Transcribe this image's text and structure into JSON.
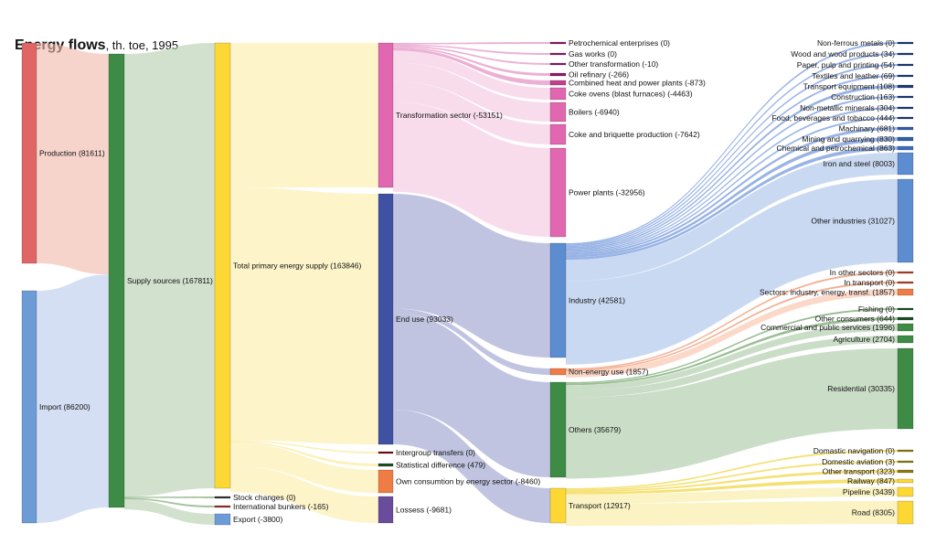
{
  "title": "Energy flows",
  "subtitle": ", th. toe, 1995",
  "chart_data": {
    "type": "sankey",
    "title": "Energy flows, th. toe, 1995",
    "nodes": [
      {
        "id": "production",
        "label": "Production (81611)",
        "value": 81611,
        "color": "#e06666"
      },
      {
        "id": "import",
        "label": "Import (86200)",
        "value": 86200,
        "color": "#6d9bd6"
      },
      {
        "id": "supply",
        "label": "Supply sources (167811)",
        "value": 167811,
        "color": "#3d8b45"
      },
      {
        "id": "tpes",
        "label": "Total primary energy supply (163846)",
        "value": 163846,
        "color": "#fdd835"
      },
      {
        "id": "stock",
        "label": "Stock changes (0)",
        "value": 0,
        "color": "#333333"
      },
      {
        "id": "bunkers",
        "label": "International bunkers (-165)",
        "value": -165,
        "color": "#9b2c2c"
      },
      {
        "id": "export",
        "label": "Export (-3800)",
        "value": -3800,
        "color": "#6d9bd6"
      },
      {
        "id": "transform",
        "label": "Transformation sector (-53151)",
        "value": -53151,
        "color": "#e067b0"
      },
      {
        "id": "enduse",
        "label": "End use (93033)",
        "value": 93033,
        "color": "#3f51a3"
      },
      {
        "id": "intergroup",
        "label": "Intergroup transfers (0)",
        "value": 0,
        "color": "#6b1010"
      },
      {
        "id": "statdiff",
        "label": "Statistical difference (479)",
        "value": 479,
        "color": "#1b4d22"
      },
      {
        "id": "owncons",
        "label": "Own consumtion by energy sector (-8460)",
        "value": -8460,
        "color": "#ef7b45"
      },
      {
        "id": "losses",
        "label": "Lossess (-9681)",
        "value": -9681,
        "color": "#6a4c9c"
      },
      {
        "id": "petrochem",
        "label": "Petrochemical enterprises (0)",
        "value": 0,
        "color": "#8e1a6a"
      },
      {
        "id": "gasworks",
        "label": "Gas works (0)",
        "value": 0,
        "color": "#8e1a6a"
      },
      {
        "id": "othertrans",
        "label": "Other transformation (-10)",
        "value": -10,
        "color": "#8e1a6a"
      },
      {
        "id": "oilref",
        "label": "Oil refinary (-266)",
        "value": -266,
        "color": "#8e1a6a"
      },
      {
        "id": "chp",
        "label": "Combined heat and power plants (-873)",
        "value": -873,
        "color": "#c2418e"
      },
      {
        "id": "cokeovens",
        "label": "Coke ovens (blast furnaces) (-4463)",
        "value": -4463,
        "color": "#e067b0"
      },
      {
        "id": "boilers",
        "label": "Boilers (-6940)",
        "value": -6940,
        "color": "#e067b0"
      },
      {
        "id": "briquette",
        "label": "Coke and briquette production (-7642)",
        "value": -7642,
        "color": "#e067b0"
      },
      {
        "id": "power",
        "label": "Power plants (-32956)",
        "value": -32956,
        "color": "#e067b0"
      },
      {
        "id": "industry",
        "label": "Industry (42581)",
        "value": 42581,
        "color": "#5b8dd0"
      },
      {
        "id": "nonenergy",
        "label": "Non-energy use (1857)",
        "value": 1857,
        "color": "#ef7b45"
      },
      {
        "id": "others",
        "label": "Others (35679)",
        "value": 35679,
        "color": "#3d8b45"
      },
      {
        "id": "transport",
        "label": "Transport (12917)",
        "value": 12917,
        "color": "#fdd835"
      },
      {
        "id": "nonferrous",
        "label": "Non-ferrous metals (0)",
        "value": 0,
        "color": "#1c3a78"
      },
      {
        "id": "wood",
        "label": "Wood and wood products (34)",
        "value": 34,
        "color": "#1c3a78"
      },
      {
        "id": "paper",
        "label": "Paper, pulp and printing (54)",
        "value": 54,
        "color": "#1c3a78"
      },
      {
        "id": "textiles",
        "label": "Textiles and leather (69)",
        "value": 69,
        "color": "#1c3a78"
      },
      {
        "id": "transeq",
        "label": "Transport equipment (108)",
        "value": 108,
        "color": "#1c3a78"
      },
      {
        "id": "construction",
        "label": "Construction (163)",
        "value": 163,
        "color": "#1c3a78"
      },
      {
        "id": "nonmetallic",
        "label": "Non-metallic minerals (304)",
        "value": 304,
        "color": "#1c3a78"
      },
      {
        "id": "food",
        "label": "Food, beverages and tobacco (444)",
        "value": 444,
        "color": "#1c3a78"
      },
      {
        "id": "machinery",
        "label": "Machinary (681)",
        "value": 681,
        "color": "#2f5fa8"
      },
      {
        "id": "mining",
        "label": "Mining and quarrying (830)",
        "value": 830,
        "color": "#2f5fa8"
      },
      {
        "id": "chemical",
        "label": "Chemical and petrochemical (863)",
        "value": 863,
        "color": "#3a6dbf"
      },
      {
        "id": "ironsteel",
        "label": "Iron and steel (8003)",
        "value": 8003,
        "color": "#5b8dd0"
      },
      {
        "id": "otherind",
        "label": "Other industries (31027)",
        "value": 31027,
        "color": "#5b8dd0"
      },
      {
        "id": "inothersec",
        "label": "In other sectors (0)",
        "value": 0,
        "color": "#b0402a"
      },
      {
        "id": "intransport",
        "label": "In transport (0)",
        "value": 0,
        "color": "#b0402a"
      },
      {
        "id": "sectorsind",
        "label": "Sectors: industry, energy, transf. (1857)",
        "value": 1857,
        "color": "#ef7b45"
      },
      {
        "id": "fishing",
        "label": "Fishing (0)",
        "value": 0,
        "color": "#1b4d22"
      },
      {
        "id": "otherconsumers",
        "label": "Other consumers (644)",
        "value": 644,
        "color": "#1b4d22"
      },
      {
        "id": "commercial",
        "label": "Commercial and public services (1996)",
        "value": 1996,
        "color": "#3d8b45"
      },
      {
        "id": "agriculture",
        "label": "Agriculture (2704)",
        "value": 2704,
        "color": "#3d8b45"
      },
      {
        "id": "residential",
        "label": "Residential (30335)",
        "value": 30335,
        "color": "#3d8b45"
      },
      {
        "id": "domnav",
        "label": "Domastic navigation (0)",
        "value": 0,
        "color": "#8a7a10"
      },
      {
        "id": "domav",
        "label": "Domestic aviation (3)",
        "value": 3,
        "color": "#8a7a10"
      },
      {
        "id": "othertransport",
        "label": "Other transport (323)",
        "value": 323,
        "color": "#8a7a10"
      },
      {
        "id": "railway",
        "label": "Railway (847)",
        "value": 847,
        "color": "#fdd835"
      },
      {
        "id": "pipeline",
        "label": "Pipeline (3439)",
        "value": 3439,
        "color": "#fdd835"
      },
      {
        "id": "road",
        "label": "Road (8305)",
        "value": 8305,
        "color": "#fdd835"
      }
    ],
    "links": [
      {
        "source": "production",
        "target": "supply",
        "value": 81611
      },
      {
        "source": "import",
        "target": "supply",
        "value": 86200
      },
      {
        "source": "supply",
        "target": "tpes",
        "value": 163846
      },
      {
        "source": "supply",
        "target": "stock",
        "value": 0
      },
      {
        "source": "supply",
        "target": "bunkers",
        "value": 165
      },
      {
        "source": "supply",
        "target": "export",
        "value": 3800
      },
      {
        "source": "tpes",
        "target": "transform",
        "value": 53151
      },
      {
        "source": "tpes",
        "target": "enduse",
        "value": 93033
      },
      {
        "source": "tpes",
        "target": "intergroup",
        "value": 0
      },
      {
        "source": "tpes",
        "target": "statdiff",
        "value": 479
      },
      {
        "source": "tpes",
        "target": "owncons",
        "value": 8460
      },
      {
        "source": "tpes",
        "target": "losses",
        "value": 9681
      },
      {
        "source": "transform",
        "target": "petrochem",
        "value": 0
      },
      {
        "source": "transform",
        "target": "gasworks",
        "value": 0
      },
      {
        "source": "transform",
        "target": "othertrans",
        "value": 10
      },
      {
        "source": "transform",
        "target": "oilref",
        "value": 266
      },
      {
        "source": "transform",
        "target": "chp",
        "value": 873
      },
      {
        "source": "transform",
        "target": "cokeovens",
        "value": 4463
      },
      {
        "source": "transform",
        "target": "boilers",
        "value": 6940
      },
      {
        "source": "transform",
        "target": "briquette",
        "value": 7642
      },
      {
        "source": "transform",
        "target": "power",
        "value": 32956
      },
      {
        "source": "enduse",
        "target": "industry",
        "value": 42581
      },
      {
        "source": "enduse",
        "target": "nonenergy",
        "value": 1857
      },
      {
        "source": "enduse",
        "target": "others",
        "value": 35679
      },
      {
        "source": "enduse",
        "target": "transport",
        "value": 12917
      },
      {
        "source": "industry",
        "target": "nonferrous",
        "value": 0
      },
      {
        "source": "industry",
        "target": "wood",
        "value": 34
      },
      {
        "source": "industry",
        "target": "paper",
        "value": 54
      },
      {
        "source": "industry",
        "target": "textiles",
        "value": 69
      },
      {
        "source": "industry",
        "target": "transeq",
        "value": 108
      },
      {
        "source": "industry",
        "target": "construction",
        "value": 163
      },
      {
        "source": "industry",
        "target": "nonmetallic",
        "value": 304
      },
      {
        "source": "industry",
        "target": "food",
        "value": 444
      },
      {
        "source": "industry",
        "target": "machinery",
        "value": 681
      },
      {
        "source": "industry",
        "target": "mining",
        "value": 830
      },
      {
        "source": "industry",
        "target": "chemical",
        "value": 863
      },
      {
        "source": "industry",
        "target": "ironsteel",
        "value": 8003
      },
      {
        "source": "industry",
        "target": "otherind",
        "value": 31027
      },
      {
        "source": "nonenergy",
        "target": "inothersec",
        "value": 0
      },
      {
        "source": "nonenergy",
        "target": "intransport",
        "value": 0
      },
      {
        "source": "nonenergy",
        "target": "sectorsind",
        "value": 1857
      },
      {
        "source": "others",
        "target": "fishing",
        "value": 0
      },
      {
        "source": "others",
        "target": "otherconsumers",
        "value": 644
      },
      {
        "source": "others",
        "target": "commercial",
        "value": 1996
      },
      {
        "source": "others",
        "target": "agriculture",
        "value": 2704
      },
      {
        "source": "others",
        "target": "residential",
        "value": 30335
      },
      {
        "source": "transport",
        "target": "domnav",
        "value": 0
      },
      {
        "source": "transport",
        "target": "domav",
        "value": 3
      },
      {
        "source": "transport",
        "target": "othertransport",
        "value": 323
      },
      {
        "source": "transport",
        "target": "railway",
        "value": 847
      },
      {
        "source": "transport",
        "target": "pipeline",
        "value": 3439
      },
      {
        "source": "transport",
        "target": "road",
        "value": 8305
      }
    ]
  }
}
